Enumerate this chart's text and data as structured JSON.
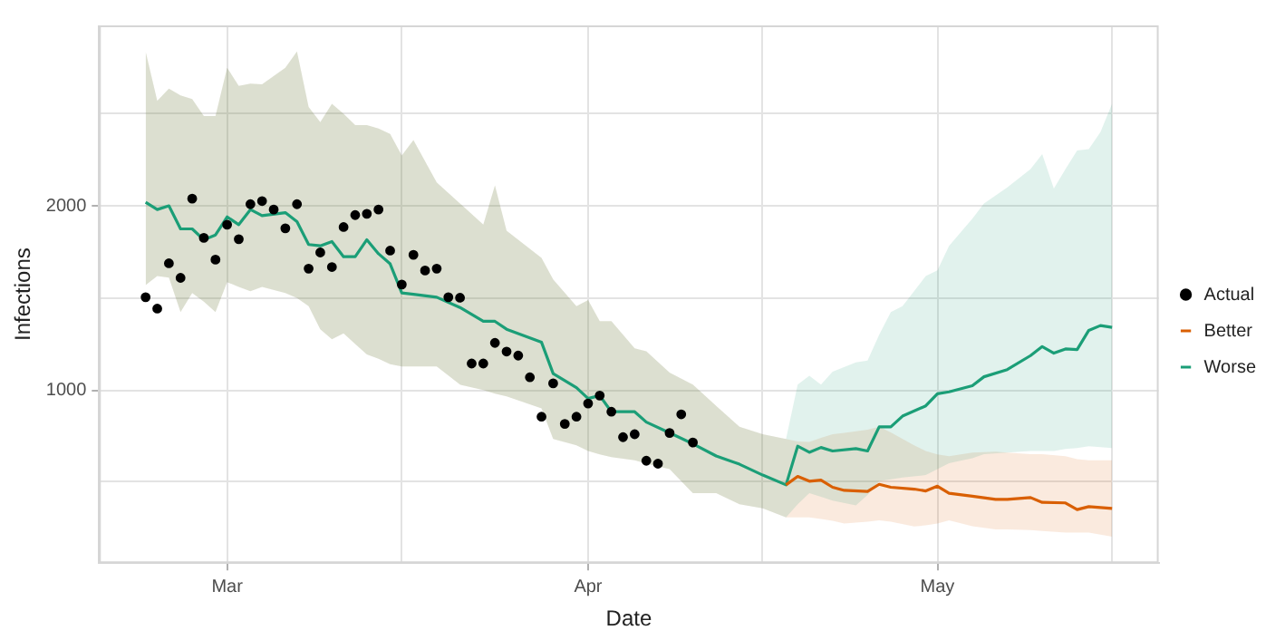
{
  "chart_data": {
    "type": "line",
    "xlabel": "Date",
    "ylabel": "Infections",
    "xlim": [
      "--02-19",
      "--05-20"
    ],
    "ylim": [
      60,
      2980
    ],
    "xticks": [
      {
        "value": "--03-01",
        "label": "Mar"
      },
      {
        "value": "--03-16",
        "label": null
      },
      {
        "value": "--04-01",
        "label": "Apr"
      },
      {
        "value": "--04-16",
        "label": null
      },
      {
        "value": "--05-01",
        "label": "May"
      },
      {
        "value": "--05-16",
        "label": null
      }
    ],
    "yticks": [
      {
        "value": 500,
        "label": null
      },
      1000,
      {
        "value": 1500,
        "label": null
      },
      2000,
      {
        "value": 2500,
        "label": null
      }
    ],
    "grid": true,
    "legend": "right",
    "series": [
      {
        "type": "line",
        "name": "Worse",
        "color": "#1b9e77",
        "x": [
          "--02-23",
          "--02-24",
          "--02-25",
          "--02-26",
          "--02-27",
          "--02-28",
          "--02-29",
          "--03-01",
          "--03-02",
          "--03-03",
          "--03-04",
          "--03-06",
          "--03-07",
          "--03-08",
          "--03-09",
          "--03-10",
          "--03-11",
          "--03-12",
          "--03-13",
          "--03-14",
          "--03-15",
          "--03-16",
          "--03-17",
          "--03-19",
          "--03-21",
          "--03-23",
          "--03-24",
          "--03-25",
          "--03-28",
          "--03-29",
          "--03-31",
          "--04-01",
          "--04-02",
          "--04-03",
          "--04-05",
          "--04-06",
          "--04-08",
          "--04-10",
          "--04-12",
          "--04-14",
          "--04-16",
          "--04-18",
          "--04-19",
          "--04-20",
          "--04-21",
          "--04-22",
          "--04-24",
          "--04-25",
          "--04-26",
          "--04-27",
          "--04-28",
          "--04-30",
          "--05-01",
          "--05-02",
          "--05-04",
          "--05-05",
          "--05-07",
          "--05-09",
          "--05-10",
          "--05-11",
          "--05-12",
          "--05-13",
          "--05-14",
          "--05-15",
          "--05-16"
        ],
        "values": [
          2019,
          1980,
          2000,
          1875,
          1875,
          1816,
          1842,
          1940,
          1898,
          1980,
          1947,
          1963,
          1914,
          1790,
          1783,
          1806,
          1724,
          1724,
          1816,
          1740,
          1685,
          1527,
          1520,
          1504,
          1448,
          1373,
          1373,
          1330,
          1259,
          1089,
          1013,
          954,
          970,
          882,
          882,
          826,
          767,
          708,
          642,
          597,
          538,
          485,
          695,
          662,
          688,
          669,
          682,
          669,
          800,
          800,
          858,
          914,
          980,
          990,
          1023,
          1072,
          1111,
          1187,
          1236,
          1200,
          1223,
          1220,
          1324,
          1350,
          1340
        ],
        "lower": [
          1570,
          1619,
          1610,
          1423,
          1527,
          1480,
          1423,
          1586,
          1560,
          1537,
          1560,
          1527,
          1500,
          1455,
          1330,
          1275,
          1308,
          1250,
          1193,
          1170,
          1140,
          1128,
          1128,
          1128,
          1029,
          1000,
          980,
          965,
          900,
          734,
          700,
          669,
          650,
          636,
          619,
          600,
          570,
          440,
          440,
          380,
          357,
          308,
          380,
          440,
          420,
          400,
          374,
          430,
          505,
          515,
          525,
          538,
          570,
          603,
          630,
          652,
          660,
          669,
          669,
          669,
          680,
          685,
          695,
          690,
          685
        ],
        "upper": [
          2839,
          2570,
          2637,
          2600,
          2580,
          2488,
          2488,
          2750,
          2651,
          2664,
          2660,
          2750,
          2839,
          2537,
          2455,
          2554,
          2500,
          2439,
          2439,
          2420,
          2390,
          2274,
          2357,
          2127,
          2013,
          1898,
          2111,
          1865,
          1718,
          1600,
          1455,
          1488,
          1374,
          1374,
          1226,
          1210,
          1095,
          1029,
          914,
          800,
          760,
          734,
          1029,
          1078,
          1029,
          1100,
          1150,
          1160,
          1300,
          1423,
          1455,
          1619,
          1650,
          1783,
          1930,
          2013,
          2100,
          2200,
          2281,
          2094,
          2200,
          2301,
          2308,
          2400,
          2554
        ]
      },
      {
        "type": "line",
        "name": "Better",
        "color": "#d95f02",
        "x": [
          "--02-23",
          "--02-24",
          "--02-25",
          "--02-26",
          "--02-27",
          "--02-28",
          "--02-29",
          "--03-01",
          "--03-02",
          "--03-03",
          "--03-04",
          "--03-06",
          "--03-07",
          "--03-08",
          "--03-09",
          "--03-10",
          "--03-11",
          "--03-12",
          "--03-13",
          "--03-14",
          "--03-15",
          "--03-16",
          "--03-17",
          "--03-19",
          "--03-21",
          "--03-23",
          "--03-24",
          "--03-25",
          "--03-28",
          "--03-29",
          "--03-31",
          "--04-01",
          "--04-02",
          "--04-03",
          "--04-05",
          "--04-06",
          "--04-08",
          "--04-10",
          "--04-12",
          "--04-14",
          "--04-16",
          "--04-18",
          "--04-19",
          "--04-20",
          "--04-21",
          "--04-22",
          "--04-23",
          "--04-25",
          "--04-26",
          "--04-27",
          "--04-29",
          "--04-30",
          "--05-01",
          "--05-02",
          "--05-04",
          "--05-06",
          "--05-07",
          "--05-09",
          "--05-10",
          "--05-12",
          "--05-13",
          "--05-14",
          "--05-16"
        ],
        "values": [
          null,
          null,
          null,
          null,
          null,
          null,
          null,
          null,
          null,
          null,
          null,
          null,
          null,
          null,
          null,
          null,
          null,
          null,
          null,
          null,
          null,
          null,
          null,
          null,
          null,
          null,
          null,
          null,
          null,
          null,
          null,
          null,
          null,
          null,
          null,
          null,
          null,
          null,
          null,
          null,
          null,
          485,
          531,
          505,
          511,
          472,
          455,
          449,
          488,
          472,
          462,
          452,
          478,
          439,
          423,
          406,
          406,
          416,
          390,
          387,
          351,
          367,
          357
        ],
        "lower": [
          1570,
          1619,
          1610,
          1423,
          1527,
          1480,
          1423,
          1586,
          1560,
          1537,
          1560,
          1527,
          1500,
          1455,
          1330,
          1275,
          1308,
          1250,
          1193,
          1170,
          1140,
          1128,
          1128,
          1128,
          1029,
          1000,
          980,
          965,
          900,
          734,
          700,
          669,
          650,
          636,
          619,
          600,
          570,
          440,
          440,
          380,
          357,
          308,
          308,
          308,
          300,
          290,
          275,
          285,
          292,
          285,
          259,
          265,
          275,
          292,
          260,
          243,
          243,
          240,
          235,
          226,
          226,
          226,
          204
        ],
        "upper": [
          2839,
          2570,
          2637,
          2600,
          2580,
          2488,
          2488,
          2750,
          2651,
          2664,
          2660,
          2750,
          2839,
          2537,
          2455,
          2554,
          2500,
          2439,
          2439,
          2420,
          2390,
          2274,
          2357,
          2127,
          2013,
          1898,
          2111,
          1865,
          1718,
          1600,
          1455,
          1488,
          1374,
          1374,
          1226,
          1210,
          1095,
          1029,
          914,
          800,
          760,
          734,
          720,
          718,
          740,
          760,
          767,
          785,
          800,
          770,
          700,
          669,
          650,
          640,
          660,
          665,
          660,
          652,
          652,
          640,
          625,
          619,
          619
        ]
      },
      {
        "type": "scatter",
        "name": "Actual",
        "color": "#000000",
        "marker": "circle",
        "x": [
          "--02-23",
          "--02-24",
          "--02-25",
          "--02-26",
          "--02-27",
          "--02-28",
          "--02-29",
          "--03-01",
          "--03-02",
          "--03-03",
          "--03-04",
          "--03-05",
          "--03-06",
          "--03-07",
          "--03-08",
          "--03-09",
          "--03-10",
          "--03-11",
          "--03-12",
          "--03-13",
          "--03-14",
          "--03-15",
          "--03-16",
          "--03-17",
          "--03-18",
          "--03-19",
          "--03-20",
          "--03-21",
          "--03-22",
          "--03-23",
          "--03-24",
          "--03-25",
          "--03-26",
          "--03-27",
          "--03-28",
          "--03-29",
          "--03-30",
          "--03-31",
          "--04-01",
          "--04-02",
          "--04-03",
          "--04-04",
          "--04-05",
          "--04-06",
          "--04-07",
          "--04-08",
          "--04-09",
          "--04-10"
        ],
        "values": [
          1504,
          1442,
          1688,
          1609,
          2039,
          1826,
          1708,
          1898,
          1819,
          2009,
          2026,
          1980,
          1878,
          2009,
          1659,
          1747,
          1668,
          1885,
          1950,
          1957,
          1980,
          1757,
          1573,
          1734,
          1649,
          1659,
          1504,
          1501,
          1144,
          1144,
          1256,
          1209,
          1187,
          1069,
          855,
          1036,
          816,
          855,
          927,
          970,
          882,
          744,
          760,
          616,
          600,
          767,
          868,
          715
        ]
      }
    ]
  }
}
